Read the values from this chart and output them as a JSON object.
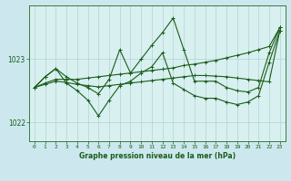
{
  "background_color": "#cce8ee",
  "plot_bg_color": "#d8f0f0",
  "grid_color": "#aacccc",
  "line_color": "#1a5c1a",
  "xlabel": "Graphe pression niveau de la mer (hPa)",
  "yticks": [
    1022,
    1023
  ],
  "ylim": [
    1021.7,
    1023.85
  ],
  "xlim": [
    -0.5,
    23.5
  ],
  "hours": [
    0,
    1,
    2,
    3,
    4,
    5,
    6,
    7,
    8,
    9,
    10,
    11,
    12,
    13,
    14,
    15,
    16,
    17,
    18,
    19,
    20,
    21,
    22,
    23
  ],
  "line_peak": [
    1022.55,
    1022.72,
    1022.85,
    1022.72,
    1022.62,
    1022.55,
    1022.45,
    1022.68,
    1023.15,
    1022.78,
    1023.0,
    1023.22,
    1023.42,
    1023.65,
    1023.15,
    1022.65,
    1022.65,
    1022.65,
    1022.55,
    1022.5,
    1022.48,
    1022.55,
    1023.1,
    1023.5
  ],
  "line_valley": [
    1022.55,
    1022.72,
    1022.85,
    1022.62,
    1022.5,
    1022.35,
    1022.1,
    1022.35,
    1022.58,
    1022.65,
    1022.78,
    1022.88,
    1023.1,
    1022.62,
    1022.52,
    1022.42,
    1022.38,
    1022.38,
    1022.32,
    1022.28,
    1022.32,
    1022.42,
    1022.95,
    1023.45
  ],
  "line_trend1": [
    1022.55,
    1022.62,
    1022.68,
    1022.68,
    1022.68,
    1022.7,
    1022.72,
    1022.74,
    1022.76,
    1022.78,
    1022.8,
    1022.82,
    1022.84,
    1022.86,
    1022.9,
    1022.92,
    1022.95,
    1022.98,
    1023.02,
    1023.06,
    1023.1,
    1023.15,
    1023.2,
    1023.5
  ],
  "line_trend2": [
    1022.55,
    1022.6,
    1022.65,
    1022.63,
    1022.6,
    1022.58,
    1022.56,
    1022.58,
    1022.6,
    1022.62,
    1022.64,
    1022.66,
    1022.68,
    1022.7,
    1022.72,
    1022.74,
    1022.74,
    1022.73,
    1022.72,
    1022.7,
    1022.68,
    1022.66,
    1022.64,
    1023.45
  ],
  "line_width": 0.8,
  "marker_size": 2.2,
  "tick_fontsize": 4.5,
  "label_fontsize": 5.5
}
